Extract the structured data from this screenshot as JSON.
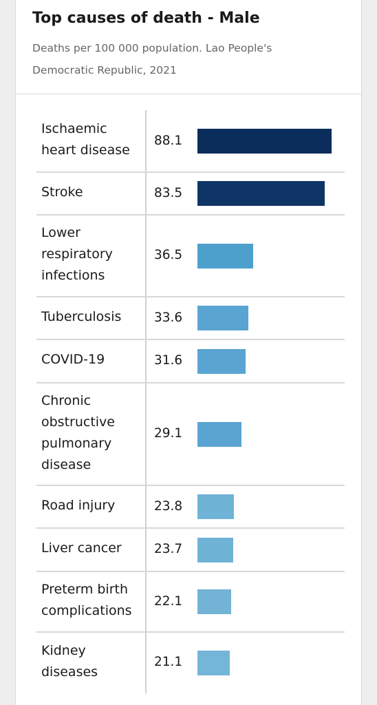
{
  "chart_data": {
    "type": "bar",
    "orientation": "horizontal",
    "title": "Top causes of death - Male",
    "subtitle": "Deaths per 100 000 population. Lao People's Democratic Republic, 2021",
    "categories": [
      "Ischaemic heart disease",
      "Stroke",
      "Lower respiratory infections",
      "Tuberculosis",
      "COVID-19",
      "Chronic obstructive pulmonary disease",
      "Road injury",
      "Liver cancer",
      "Preterm birth complications",
      "Kidney diseases"
    ],
    "values": [
      88.1,
      83.5,
      36.5,
      33.6,
      31.6,
      29.1,
      23.8,
      23.7,
      22.1,
      21.1
    ],
    "value_labels": [
      "88.1",
      "83.5",
      "36.5",
      "33.6",
      "31.6",
      "29.1",
      "23.8",
      "23.7",
      "22.1",
      "21.1"
    ],
    "category_group_colors": [
      "#0b2d5b",
      "#0f3566",
      "#4ea0cc",
      "#5aa4d1",
      "#5aa4d1",
      "#5aa4d1",
      "#6fb3d6",
      "#6fb3d6",
      "#72b3d6",
      "#74b6d7"
    ],
    "xlim": [
      0,
      88.1
    ],
    "grid": false,
    "legend": "none"
  }
}
